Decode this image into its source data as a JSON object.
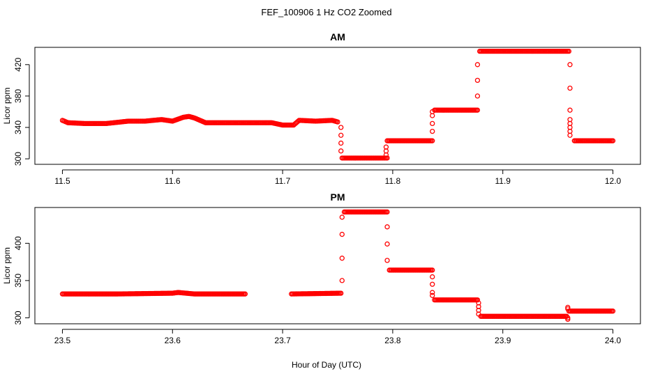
{
  "figure": {
    "suptitle": "FEF_100906  1 Hz CO2 Zoomed",
    "xlabel": "Hour of Day (UTC)",
    "marker_color": "#ff0000"
  },
  "chart_data": [
    {
      "type": "scatter",
      "title": "AM",
      "xlabel": "",
      "ylabel": "Licor ppm",
      "xlim": [
        11.475,
        12.025
      ],
      "ylim": [
        293,
        442
      ],
      "xticks": [
        11.5,
        11.6,
        11.7,
        11.8,
        11.9,
        12.0
      ],
      "xtick_labels": [
        "11.5",
        "11.6",
        "11.7",
        "11.8",
        "11.9",
        "12.0"
      ],
      "yticks": [
        300,
        340,
        380,
        420
      ],
      "ytick_labels": [
        "300",
        "340",
        "380",
        "420"
      ],
      "grid": false,
      "series": [
        {
          "color": "#ff0000",
          "segments": [
            {
              "x": [
                11.5,
                11.505,
                11.52,
                11.54,
                11.56,
                11.575,
                11.59,
                11.6,
                11.61,
                11.615,
                11.62,
                11.63,
                11.65,
                11.67,
                11.69,
                11.7,
                11.71,
                11.715,
                11.73,
                11.745,
                11.75
              ],
              "y": [
                349,
                346,
                345,
                345,
                348,
                348,
                350,
                348,
                353,
                354,
                352,
                346,
                346,
                346,
                346,
                343,
                343,
                349,
                348,
                349,
                347
              ]
            },
            {
              "x": [
                11.754,
                11.795
              ],
              "y": [
                301,
                301
              ]
            },
            {
              "x": [
                11.795,
                11.836
              ],
              "y": [
                323,
                323
              ]
            },
            {
              "x": [
                11.838,
                11.877
              ],
              "y": [
                362,
                362
              ]
            },
            {
              "x": [
                11.879,
                11.96
              ],
              "y": [
                437,
                437
              ]
            },
            {
              "x": [
                11.965,
                12.0
              ],
              "y": [
                323,
                323
              ]
            }
          ],
          "transitions": [
            {
              "x": 11.753,
              "y": [
                340,
                330,
                320,
                310
              ]
            },
            {
              "x": 11.794,
              "y": [
                305,
                310,
                315
              ]
            },
            {
              "x": 11.836,
              "y": [
                335,
                345,
                355,
                360
              ]
            },
            {
              "x": 11.877,
              "y": [
                380,
                400,
                420
              ]
            },
            {
              "x": 11.961,
              "y": [
                420,
                390,
                362,
                350,
                345,
                340,
                335,
                330
              ]
            }
          ]
        }
      ]
    },
    {
      "type": "scatter",
      "title": "PM",
      "xlabel": "Hour of Day (UTC)",
      "ylabel": "Licor ppm",
      "xlim": [
        23.475,
        24.025
      ],
      "ylim": [
        292,
        448
      ],
      "xticks": [
        23.5,
        23.6,
        23.7,
        23.8,
        23.9,
        24.0
      ],
      "xtick_labels": [
        "23.5",
        "23.6",
        "23.7",
        "23.8",
        "23.9",
        "24.0"
      ],
      "yticks": [
        300,
        350,
        400
      ],
      "ytick_labels": [
        "300",
        "350",
        "400"
      ],
      "grid": false,
      "series": [
        {
          "color": "#ff0000",
          "segments": [
            {
              "x": [
                23.5,
                23.55,
                23.6,
                23.605,
                23.62,
                23.666
              ],
              "y": [
                332,
                332,
                333,
                334,
                332,
                332
              ]
            },
            {
              "x": [
                23.708,
                23.753
              ],
              "y": [
                332,
                333
              ]
            },
            {
              "x": [
                23.756,
                23.795
              ],
              "y": [
                442,
                442
              ]
            },
            {
              "x": [
                23.797,
                23.836
              ],
              "y": [
                364,
                364
              ]
            },
            {
              "x": [
                23.838,
                23.877
              ],
              "y": [
                324,
                324
              ]
            },
            {
              "x": [
                23.88,
                23.958
              ],
              "y": [
                302,
                302
              ]
            },
            {
              "x": [
                23.96,
                24.0
              ],
              "y": [
                309,
                309
              ]
            }
          ],
          "transitions": [
            {
              "x": 23.754,
              "y": [
                350,
                380,
                412,
                435
              ]
            },
            {
              "x": 23.795,
              "y": [
                422,
                399,
                377
              ]
            },
            {
              "x": 23.836,
              "y": [
                355,
                345,
                334,
                330
              ]
            },
            {
              "x": 23.878,
              "y": [
                320,
                315,
                310,
                305
              ]
            },
            {
              "x": 23.959,
              "y": [
                298,
                300,
                314,
                312
              ]
            }
          ]
        }
      ]
    }
  ]
}
